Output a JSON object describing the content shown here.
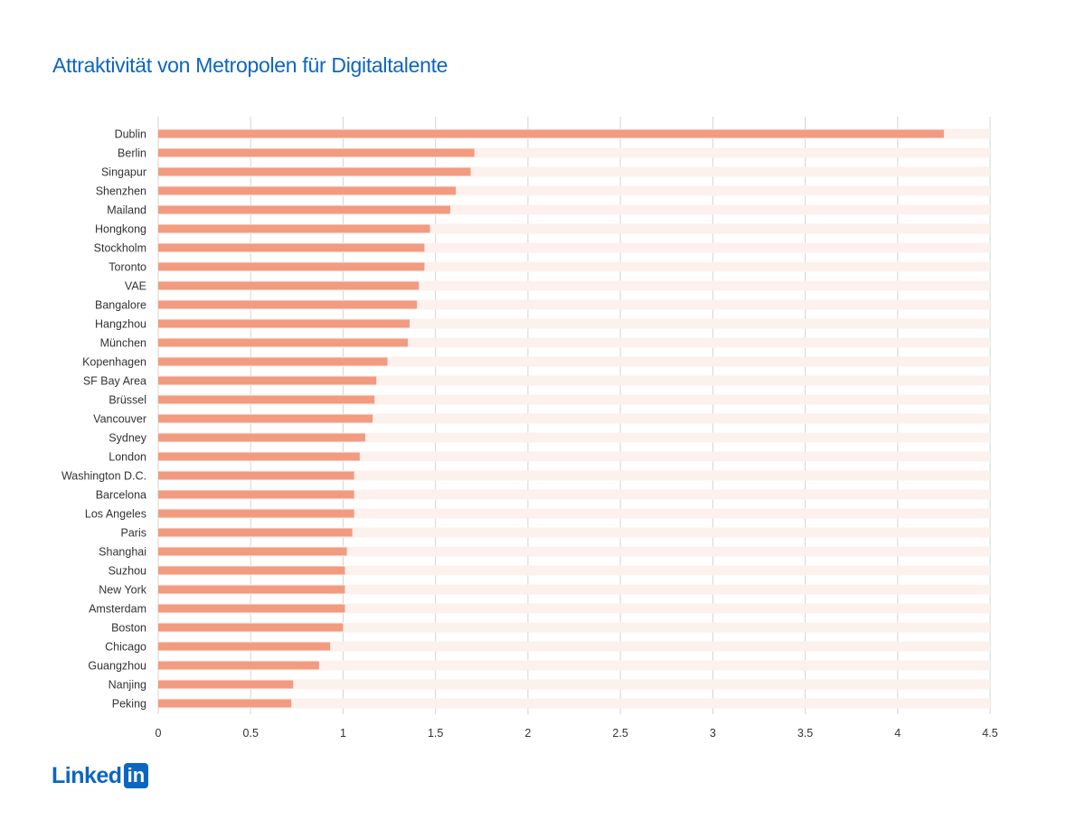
{
  "chart_data": {
    "type": "bar",
    "orientation": "horizontal",
    "title": "Attraktivität von Metropolen für Digitaltalente",
    "categories": [
      "Dublin",
      "Berlin",
      "Singapur",
      "Shenzhen",
      "Mailand",
      "Hongkong",
      "Stockholm",
      "Toronto",
      "VAE",
      "Bangalore",
      "Hangzhou",
      "München",
      "Kopenhagen",
      "SF Bay Area",
      "Brüssel",
      "Vancouver",
      "Sydney",
      "London",
      "Washington D.C.",
      "Barcelona",
      "Los Angeles",
      "Paris",
      "Shanghai",
      "Suzhou",
      "New York",
      "Amsterdam",
      "Boston",
      "Chicago",
      "Guangzhou",
      "Nanjing",
      "Peking"
    ],
    "values": [
      4.25,
      1.71,
      1.69,
      1.61,
      1.58,
      1.47,
      1.44,
      1.44,
      1.41,
      1.4,
      1.36,
      1.35,
      1.24,
      1.18,
      1.17,
      1.16,
      1.12,
      1.09,
      1.06,
      1.06,
      1.06,
      1.05,
      1.02,
      1.01,
      1.01,
      1.01,
      1.0,
      0.93,
      0.87,
      0.73,
      0.72
    ],
    "xlim": [
      0,
      4.5
    ],
    "xticks": [
      0,
      0.5,
      1,
      1.5,
      2,
      2.5,
      3,
      3.5,
      4,
      4.5
    ],
    "xtick_labels": [
      "0",
      "0.5",
      "1",
      "1.5",
      "2",
      "2.5",
      "3",
      "3.5",
      "4",
      "4.5"
    ],
    "xlabel": "",
    "ylabel": "",
    "grid": "vertical",
    "legend": "none",
    "colors": {
      "bar": "#f29b80",
      "bar_track": "#fdf1ee",
      "grid": "#d4d4d4",
      "title": "#0a66c2"
    }
  },
  "brand": {
    "logo_text": "Linked",
    "logo_box": "in",
    "color": "#0a66c2"
  }
}
